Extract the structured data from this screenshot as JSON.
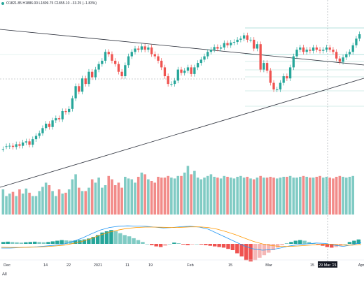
{
  "header": {
    "ohlc_text": "O1821.85 H1886.00 L1809.75 C1855.10 −33.25 (−1.83%)"
  },
  "footer": {
    "range_label": "All"
  },
  "chart_data": {
    "type": "candlestick",
    "title": "",
    "x_ticks": [
      "Dec",
      "14",
      "22",
      "2021",
      "11",
      "19",
      "Feb",
      "15",
      "Mar",
      "15",
      "29 Mar '21",
      "Apr"
    ],
    "highlighted_tick": "29 Mar '21",
    "colors": {
      "up": "#26a69a",
      "down": "#ef5350",
      "vol_up": "#80cbc4",
      "vol_down": "#f28b89",
      "macd": "#2196f3",
      "signal": "#ff9800",
      "fib": "#9ad6d1",
      "trend": "#2a2e39"
    },
    "candles": [
      [
        1,
        1
      ],
      [
        1.12,
        1.13
      ],
      [
        1.13,
        1.15
      ],
      [
        1.15,
        1.1
      ],
      [
        1.1,
        1.22
      ],
      [
        1.22,
        1.15
      ],
      [
        1.15,
        1.3
      ],
      [
        1.3,
        1.35
      ],
      [
        1.35,
        1.2
      ],
      [
        1.2,
        1.45
      ],
      [
        1.45,
        1.6
      ],
      [
        1.6,
        1.72
      ],
      [
        1.72,
        1.95
      ],
      [
        1.95,
        2.15
      ],
      [
        2.15,
        2.0
      ],
      [
        2.0,
        2.3
      ],
      [
        2.3,
        2.4
      ],
      [
        2.4,
        2.35
      ],
      [
        2.35,
        2.72
      ],
      [
        2.72,
        2.68
      ],
      [
        2.68,
        2.82
      ],
      [
        2.82,
        3.3
      ],
      [
        3.3,
        3.85
      ],
      [
        3.85,
        3.6
      ],
      [
        3.6,
        4.2
      ],
      [
        4.2,
        3.95
      ],
      [
        3.95,
        4.5
      ],
      [
        4.5,
        4.25
      ],
      [
        4.25,
        4.6
      ],
      [
        4.6,
        4.85
      ],
      [
        4.85,
        5.0
      ],
      [
        5.0,
        5.4
      ],
      [
        5.4,
        5.3
      ],
      [
        5.3,
        5.0
      ],
      [
        5.0,
        4.85
      ],
      [
        4.85,
        4.5
      ],
      [
        4.5,
        4.3
      ],
      [
        4.3,
        4.8
      ],
      [
        4.8,
        5.2
      ],
      [
        5.2,
        5.4
      ],
      [
        5.4,
        5.55
      ],
      [
        5.55,
        5.5
      ],
      [
        5.5,
        5.65
      ],
      [
        5.65,
        5.5
      ],
      [
        5.5,
        5.6
      ],
      [
        5.6,
        5.3
      ],
      [
        5.3,
        5.2
      ],
      [
        5.2,
        5.0
      ],
      [
        5.0,
        4.7
      ],
      [
        4.7,
        4.3
      ],
      [
        4.3,
        3.95
      ],
      [
        3.95,
        3.95
      ],
      [
        3.95,
        4.1
      ],
      [
        4.1,
        4.6
      ],
      [
        4.6,
        4.45
      ],
      [
        4.45,
        4.55
      ],
      [
        4.55,
        4.7
      ],
      [
        4.7,
        4.4
      ],
      [
        4.4,
        4.7
      ],
      [
        4.7,
        4.9
      ],
      [
        4.9,
        5.05
      ],
      [
        5.05,
        5.2
      ],
      [
        5.2,
        5.4
      ],
      [
        5.4,
        5.5
      ],
      [
        5.5,
        5.62
      ],
      [
        5.62,
        5.55
      ],
      [
        5.55,
        5.6
      ],
      [
        5.6,
        5.8
      ],
      [
        5.8,
        5.7
      ],
      [
        5.7,
        5.82
      ],
      [
        5.82,
        5.85
      ],
      [
        5.85,
        5.95
      ],
      [
        5.95,
        6.0
      ],
      [
        6.0,
        6.15
      ],
      [
        6.15,
        5.95
      ],
      [
        5.95,
        5.95
      ],
      [
        5.95,
        5.55
      ],
      [
        5.55,
        5.75
      ],
      [
        5.75,
        4.6
      ],
      [
        4.6,
        4.9
      ],
      [
        4.9,
        4.55
      ],
      [
        4.55,
        4.0
      ],
      [
        4.0,
        3.7
      ],
      [
        3.7,
        3.7
      ],
      [
        3.7,
        4.0
      ],
      [
        4.0,
        4.3
      ],
      [
        4.3,
        4.2
      ],
      [
        4.2,
        4.7
      ],
      [
        4.7,
        5.2
      ],
      [
        5.2,
        5.5
      ],
      [
        5.5,
        5.6
      ],
      [
        5.6,
        5.4
      ],
      [
        5.4,
        5.5
      ],
      [
        5.5,
        5.45
      ],
      [
        5.45,
        5.6
      ],
      [
        5.6,
        5.5
      ],
      [
        5.5,
        5.45
      ],
      [
        5.45,
        5.5
      ],
      [
        5.5,
        5.6
      ],
      [
        5.6,
        5.5
      ],
      [
        5.5,
        5.4
      ],
      [
        5.4,
        5.1
      ],
      [
        5.1,
        4.95
      ],
      [
        4.95,
        5.15
      ],
      [
        5.15,
        5.3
      ],
      [
        5.3,
        5.4
      ],
      [
        5.4,
        5.7
      ],
      [
        5.7,
        6.0
      ],
      [
        6.0,
        6.2
      ]
    ],
    "volume": [
      3,
      2.2,
      2.5,
      2.7,
      2.2,
      3,
      2.5,
      3.1,
      2.6,
      2.2,
      2.2,
      2.8,
      3.3,
      3.8,
      3.5,
      2.8,
      2.2,
      3,
      2.5,
      2.6,
      3,
      4.2,
      4.8,
      3.2,
      2.8,
      2.8,
      3.2,
      4.2,
      3.8,
      4.4,
      3.2,
      3.5,
      4.6,
      4.2,
      3.5,
      3.8,
      3.2,
      4.5,
      4.3,
      4.2,
      3.8,
      4.5,
      5,
      4.8,
      4.2,
      4,
      3.8,
      4.5,
      4.4,
      4.4,
      4.6,
      4.4,
      4.3,
      4.6,
      4.6,
      5,
      5.8,
      4.8,
      5.2,
      4.4,
      4.2,
      4.4,
      4.6,
      4.8,
      4.5,
      4.4,
      4.3,
      4.6,
      4.5,
      4.4,
      4.3,
      4.5,
      4.6,
      4.4,
      4.5,
      4.3,
      4.2,
      4.4,
      4.6,
      4.4,
      4.4,
      4.5,
      4.4,
      4.3,
      4.4,
      4.5,
      4.5,
      4.6,
      4.4,
      4.4,
      4.5,
      4.6,
      4.5,
      4.4,
      4.4,
      4.5,
      4.6,
      4.4,
      4.5,
      4.4,
      4.3,
      4.5,
      4.6,
      4.5,
      4.4,
      4.5,
      4.6
    ],
    "macd_histogram": [
      0.3,
      0.35,
      0.3,
      0.25,
      0.2,
      0.25,
      0.3,
      0.35,
      0.3,
      0.25,
      0.3,
      0.4,
      0.5,
      0.6,
      0.55,
      0.5,
      0.55,
      0.6,
      0.7,
      0.85,
      1.1,
      1.4,
      1.8,
      2.0,
      2.2,
      2.0,
      1.7,
      1.4,
      1.2,
      0.9,
      0.6,
      0.3,
      0.0,
      -0.2,
      -0.4,
      -0.5,
      -0.3,
      0.0,
      0.2,
      0.1,
      -0.1,
      -0.2,
      -0.1,
      0.0,
      -0.1,
      -0.2,
      -0.3,
      -0.4,
      -0.5,
      -0.6,
      -0.8,
      -1.0,
      -1.5,
      -2.0,
      -2.6,
      -2.8,
      -2.6,
      -2.2,
      -1.8,
      -1.4,
      -1.0,
      -0.6,
      -0.2,
      0.1,
      0.3,
      0.5,
      0.6,
      0.5,
      0.3,
      0.1,
      -0.1,
      -0.3,
      -0.5,
      -0.6,
      -0.5,
      -0.3,
      0.0,
      0.3,
      0.5,
      0.7
    ],
    "macd_line": [
      -1,
      -1,
      -0.9,
      -0.8,
      -0.7,
      -0.5,
      -0.3,
      0,
      0.6,
      1.4,
      2.4,
      3.3,
      3.9,
      4.2,
      4.3,
      4.25,
      4.2,
      4.0,
      3.8,
      3.9,
      4.1,
      4.2,
      4.0,
      3.5,
      2.5,
      1.5,
      0.5,
      -0.5,
      -1.2,
      -1.5,
      -1.4,
      -1.0,
      -0.5,
      -0.2,
      0.0,
      0.2,
      0.1,
      -0.3,
      -0.6,
      -0.2,
      0.3
    ],
    "signal_line": [
      -0.8,
      -0.85,
      -0.85,
      -0.8,
      -0.75,
      -0.65,
      -0.5,
      -0.3,
      0.1,
      0.6,
      1.3,
      2.1,
      2.8,
      3.3,
      3.7,
      3.9,
      4.0,
      4.0,
      3.95,
      3.9,
      3.95,
      4.05,
      4.05,
      3.9,
      3.5,
      2.9,
      2.2,
      1.4,
      0.6,
      0.0,
      -0.4,
      -0.6,
      -0.6,
      -0.5,
      -0.35,
      -0.2,
      -0.1,
      -0.15,
      -0.3,
      -0.3,
      -0.15
    ]
  }
}
